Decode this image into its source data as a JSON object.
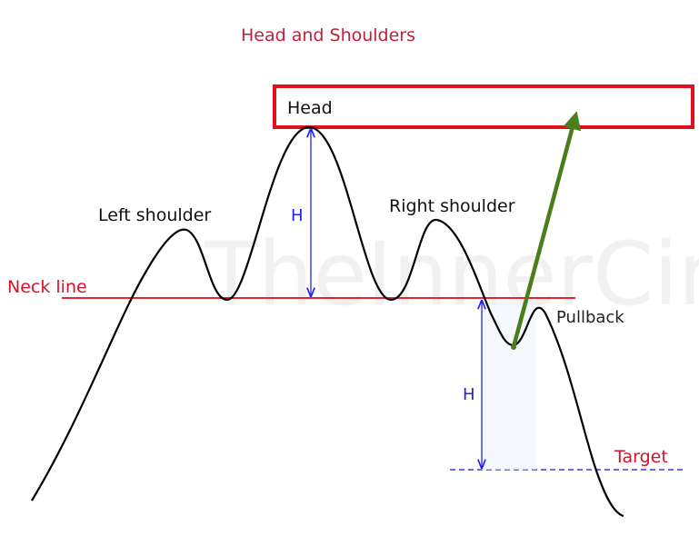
{
  "title": "Head and Shoulders",
  "labels": {
    "head": "Head",
    "left_shoulder": "Left shoulder",
    "right_shoulder": "Right shoulder",
    "neck_line": "Neck line",
    "pullback": "Pullback",
    "target": "Target",
    "height_top": "H",
    "height_bottom": "H"
  },
  "watermark": "TheInnerCircle",
  "colors": {
    "title": "#c0203a",
    "neck_line": "#e8242c",
    "head_box": "#e0101e",
    "height_arrows": "#2222ee",
    "target_line": "#3a3ad8",
    "breakout_arrow": "#4a7d1c",
    "price_curve": "#000000"
  }
}
